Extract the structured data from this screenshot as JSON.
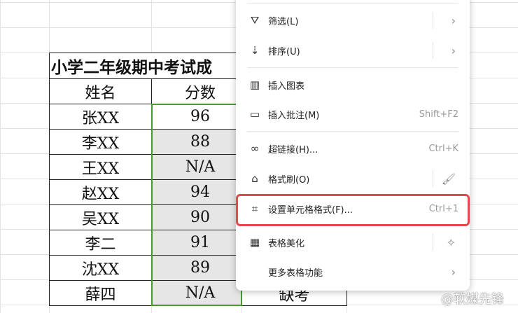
{
  "sheet": {
    "title": "小学二年级期中考试成",
    "headers": [
      "姓名",
      "分数"
    ],
    "rows": [
      {
        "name": "张XX",
        "score": "96"
      },
      {
        "name": "李XX",
        "score": "88"
      },
      {
        "name": "王XX",
        "score": "N/A"
      },
      {
        "name": "赵XX",
        "score": "94"
      },
      {
        "name": "吴XX",
        "score": "90"
      },
      {
        "name": "李二",
        "score": "91"
      },
      {
        "name": "沈XX",
        "score": "89"
      },
      {
        "name": "薛四",
        "score": "N/A"
      }
    ],
    "partial_cell": "缺考"
  },
  "menu": {
    "items": [
      {
        "label": "筛选(L)",
        "icon": "filter-icon",
        "submenu": true
      },
      {
        "label": "排序(U)",
        "icon": "sort-icon",
        "submenu": true
      },
      {
        "label": "插入图表",
        "icon": "chart-icon"
      },
      {
        "label": "插入批注(M)",
        "icon": "comment-icon",
        "shortcut": "Shift+F2"
      },
      {
        "label": "超链接(H)...",
        "icon": "link-icon",
        "shortcut": "Ctrl+K"
      },
      {
        "label": "格式刷(O)",
        "icon": "format-painter-icon"
      },
      {
        "label": "设置单元格格式(F)...",
        "icon": "format-cells-icon",
        "shortcut": "Ctrl+1",
        "highlighted": true
      },
      {
        "label": "表格美化",
        "icon": "table-beautify-icon"
      },
      {
        "label": "更多表格功能",
        "submenu": true
      }
    ]
  },
  "watermark": "@软媒先锋",
  "colors": {
    "selection": "#4a9a2e",
    "highlight": "#e5484d"
  }
}
